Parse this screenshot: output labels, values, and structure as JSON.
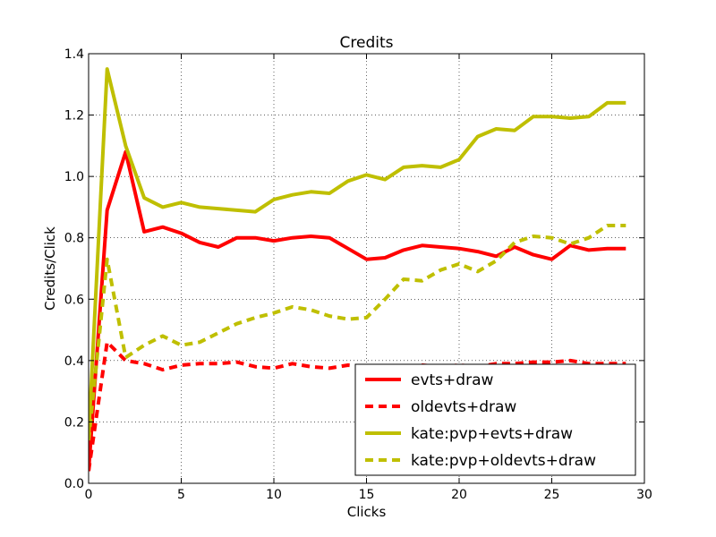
{
  "chart_data": {
    "type": "line",
    "title": "Credits",
    "xlabel": "Clicks",
    "ylabel": "Credits/Click",
    "xlim": [
      0,
      30
    ],
    "ylim": [
      0.0,
      1.4
    ],
    "xticks": [
      "0",
      "5",
      "10",
      "15",
      "20",
      "25",
      "30"
    ],
    "yticks": [
      "0.0",
      "0.2",
      "0.4",
      "0.6",
      "0.8",
      "1.0",
      "1.2",
      "1.4"
    ],
    "grid": true,
    "legend_position": "lower-right",
    "series": [
      {
        "name": "evts+draw",
        "color": "#ff0000",
        "style": "solid",
        "x": [
          0,
          1,
          2,
          3,
          4,
          5,
          6,
          7,
          8,
          9,
          10,
          11,
          12,
          13,
          14,
          15,
          16,
          17,
          18,
          19,
          20,
          21,
          22,
          23,
          24,
          25,
          26,
          27,
          28,
          29
        ],
        "y": [
          0.04,
          0.89,
          1.08,
          0.82,
          0.835,
          0.815,
          0.785,
          0.77,
          0.8,
          0.8,
          0.79,
          0.8,
          0.805,
          0.8,
          0.765,
          0.73,
          0.735,
          0.76,
          0.775,
          0.77,
          0.765,
          0.755,
          0.74,
          0.77,
          0.745,
          0.73,
          0.775,
          0.76,
          0.765,
          0.765
        ]
      },
      {
        "name": "oldevts+draw",
        "color": "#ff0000",
        "style": "dashed",
        "x": [
          0,
          1,
          2,
          3,
          4,
          5,
          6,
          7,
          8,
          9,
          10,
          11,
          12,
          13,
          14,
          15,
          16,
          17,
          18,
          19,
          20,
          21,
          22,
          23,
          24,
          25,
          26,
          27,
          28,
          29
        ],
        "y": [
          0.04,
          0.46,
          0.4,
          0.39,
          0.37,
          0.385,
          0.39,
          0.39,
          0.395,
          0.38,
          0.375,
          0.39,
          0.38,
          0.375,
          0.385,
          0.38,
          0.375,
          0.38,
          0.385,
          0.38,
          0.385,
          0.38,
          0.39,
          0.39,
          0.395,
          0.395,
          0.4,
          0.39,
          0.39,
          0.39
        ]
      },
      {
        "name": "kate:pvp+evts+draw",
        "color": "#bfbf00",
        "style": "solid",
        "x": [
          0,
          1,
          2,
          3,
          4,
          5,
          6,
          7,
          8,
          9,
          10,
          11,
          12,
          13,
          14,
          15,
          16,
          17,
          18,
          19,
          20,
          21,
          22,
          23,
          24,
          25,
          26,
          27,
          28,
          29
        ],
        "y": [
          0.15,
          1.35,
          1.1,
          0.93,
          0.9,
          0.915,
          0.9,
          0.895,
          0.89,
          0.885,
          0.925,
          0.94,
          0.95,
          0.945,
          0.985,
          1.005,
          0.99,
          1.03,
          1.035,
          1.03,
          1.055,
          1.13,
          1.155,
          1.15,
          1.195,
          1.195,
          1.19,
          1.195,
          1.24,
          1.24
        ]
      },
      {
        "name": "kate:pvp+oldevts+draw",
        "color": "#bfbf00",
        "style": "dashed",
        "x": [
          0,
          1,
          2,
          3,
          4,
          5,
          6,
          7,
          8,
          9,
          10,
          11,
          12,
          13,
          14,
          15,
          16,
          17,
          18,
          19,
          20,
          21,
          22,
          23,
          24,
          25,
          26,
          27,
          28,
          29
        ],
        "y": [
          0.14,
          0.73,
          0.41,
          0.45,
          0.48,
          0.45,
          0.46,
          0.49,
          0.52,
          0.54,
          0.555,
          0.575,
          0.565,
          0.545,
          0.535,
          0.54,
          0.6,
          0.665,
          0.66,
          0.695,
          0.715,
          0.69,
          0.725,
          0.785,
          0.805,
          0.8,
          0.78,
          0.8,
          0.84,
          0.84
        ]
      }
    ]
  }
}
